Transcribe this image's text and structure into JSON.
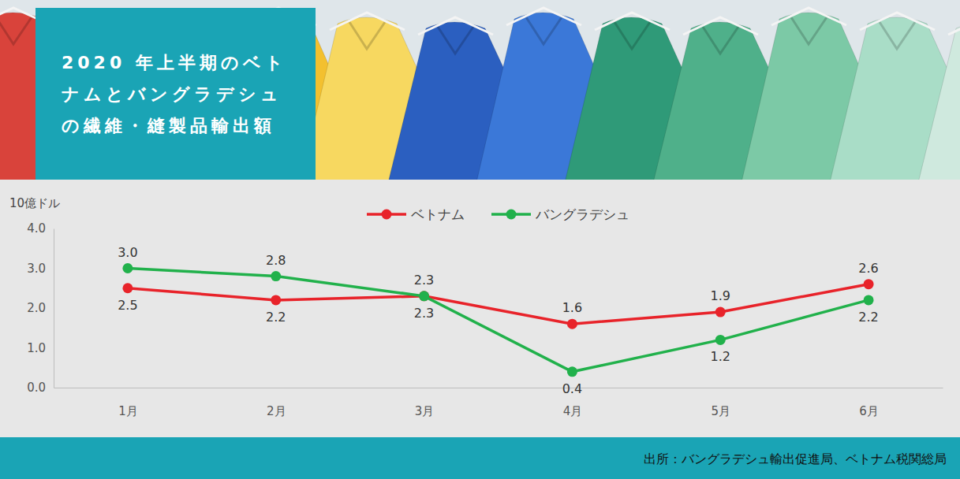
{
  "chart_data": {
    "type": "line",
    "title": "2020 年上半期のベトナムとバングラデシュの繊維・縫製品輸出額",
    "ylabel": "10億ドル",
    "source": "出所：バングラデシュ輸出促進局、ベトナム税関総局",
    "categories": [
      "1月",
      "2月",
      "3月",
      "4月",
      "5月",
      "6月"
    ],
    "series": [
      {
        "name": "ベトナム",
        "color": "#e8232a",
        "values": [
          2.5,
          2.2,
          2.3,
          1.6,
          1.9,
          2.6
        ],
        "value_labels": [
          "2.5",
          "2.2",
          "2.3",
          "1.6",
          "1.9",
          "2.6"
        ]
      },
      {
        "name": "バングラデシュ",
        "color": "#21b14b",
        "values": [
          3.0,
          2.8,
          2.3,
          0.4,
          1.2,
          2.2
        ],
        "value_labels": [
          "3.0",
          "2.8",
          "2.3",
          "0.4",
          "1.2",
          "2.2"
        ]
      }
    ],
    "ylim": [
      0,
      4
    ],
    "yticks": [
      {
        "value": 0,
        "label": "0.0"
      },
      {
        "value": 1,
        "label": "1.0"
      },
      {
        "value": 2,
        "label": "2.0"
      },
      {
        "value": 3,
        "label": "3.0"
      },
      {
        "value": 4,
        "label": "4.0"
      }
    ],
    "grid": false,
    "legend": "top",
    "data_labels": true,
    "marker": "circle"
  }
}
